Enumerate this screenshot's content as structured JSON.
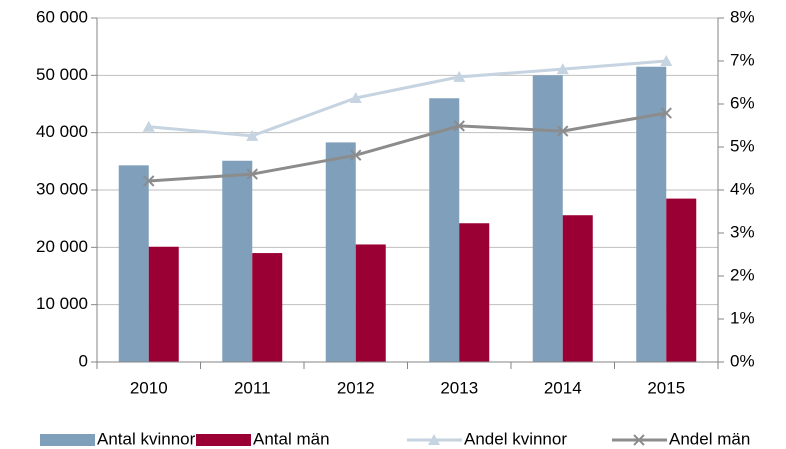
{
  "chart_data": {
    "type": "bar_line",
    "categories": [
      "2010",
      "2011",
      "2012",
      "2013",
      "2014",
      "2015"
    ],
    "series": [
      {
        "name": "Antal kvinnor",
        "type": "bar",
        "color": "#7f9fba",
        "values": [
          34300,
          35100,
          38300,
          46000,
          50000,
          51500
        ]
      },
      {
        "name": "Antal män",
        "type": "bar",
        "color": "#9b0034",
        "values": [
          20100,
          19000,
          20500,
          24200,
          25600,
          28500
        ]
      },
      {
        "name": "Andel kvinnor",
        "type": "line",
        "axis": "y2",
        "marker": "triangle",
        "color": "#c6d3e0",
        "values": [
          5.47,
          5.26,
          6.14,
          6.63,
          6.81,
          7.0
        ]
      },
      {
        "name": "Andel män",
        "type": "line",
        "axis": "y2",
        "marker": "x",
        "color": "#8c8c8c",
        "values": [
          4.21,
          4.37,
          4.81,
          5.49,
          5.37,
          5.79
        ]
      }
    ],
    "ylim": [
      0,
      60000
    ],
    "yticks": [
      0,
      {
        "value": 10000,
        "label": "10 000"
      },
      {
        "value": 20000,
        "label": "20 000"
      },
      {
        "value": 30000,
        "label": "30 000"
      },
      {
        "value": 40000,
        "label": "40 000"
      },
      {
        "value": 50000,
        "label": "50 000"
      },
      {
        "value": 60000,
        "label": "60 000"
      }
    ],
    "y2lim": [
      0,
      8
    ],
    "y2ticks": [
      {
        "value": 0,
        "label": "0%"
      },
      {
        "value": 1,
        "label": "1%"
      },
      {
        "value": 2,
        "label": "2%"
      },
      {
        "value": 3,
        "label": "3%"
      },
      {
        "value": 4,
        "label": "4%"
      },
      {
        "value": 5,
        "label": "5%"
      },
      {
        "value": 6,
        "label": "6%"
      },
      {
        "value": 7,
        "label": "7%"
      },
      {
        "value": 8,
        "label": "8%"
      }
    ],
    "grid": true,
    "legend": "bottom"
  }
}
